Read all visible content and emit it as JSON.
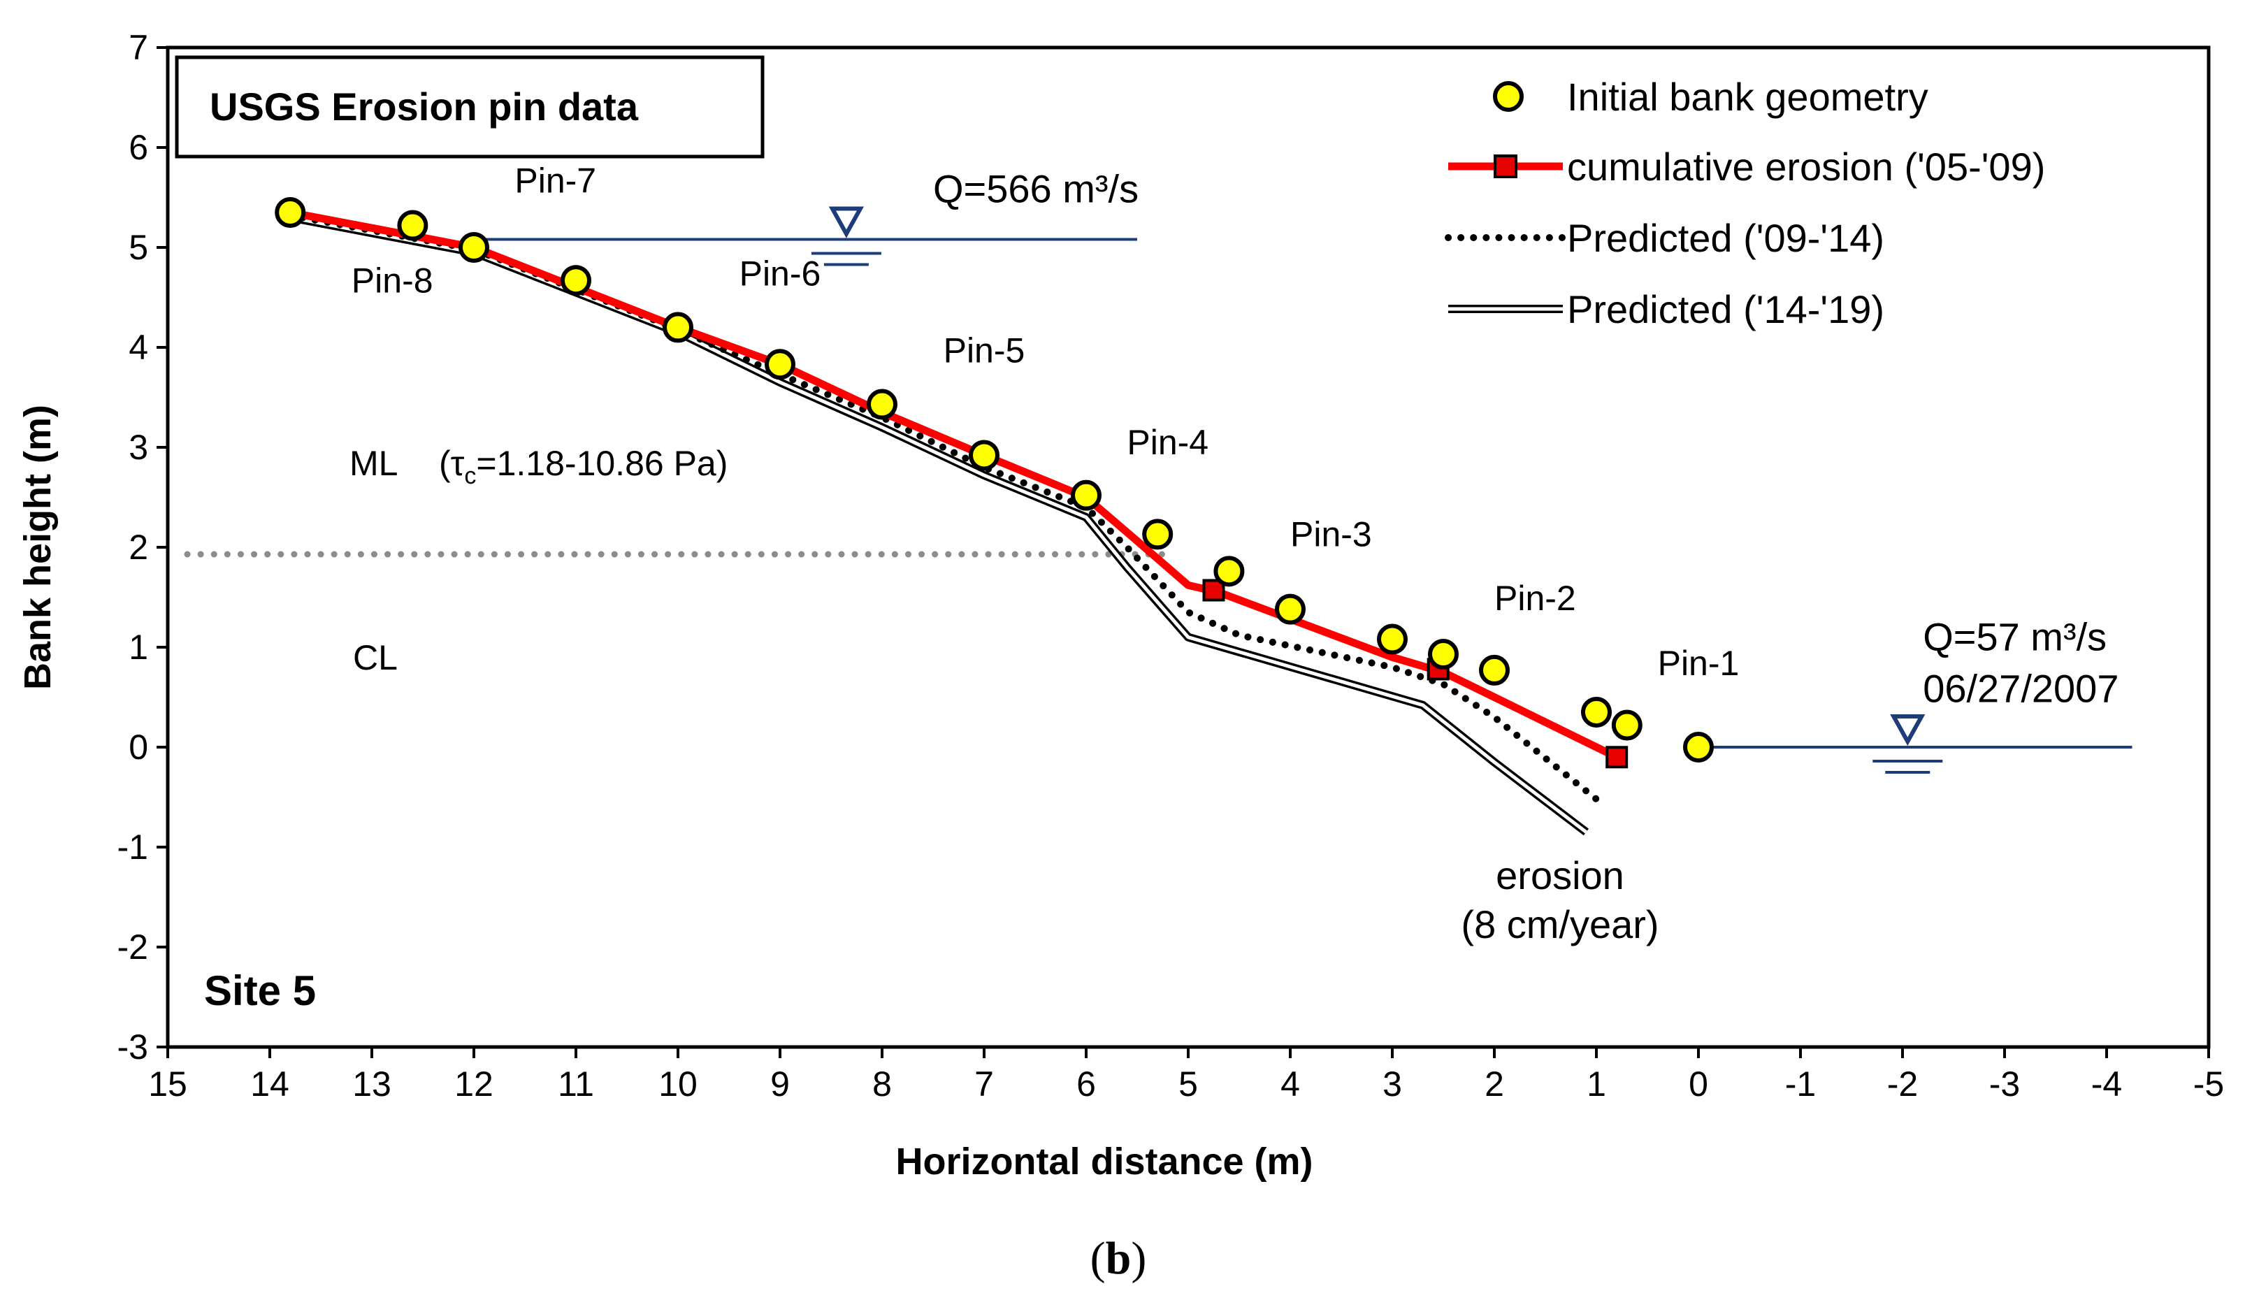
{
  "chart_data": {
    "type": "line",
    "title": "USGS Erosion pin data",
    "xlabel": "Horizontal distance (m)",
    "ylabel": "Bank height (m)",
    "xlim": [
      15,
      -5
    ],
    "ylim": [
      -3,
      7
    ],
    "x_ticks": [
      "15",
      "14",
      "13",
      "12",
      "11",
      "10",
      "9",
      "8",
      "7",
      "6",
      "5",
      "4",
      "3",
      "2",
      "1",
      "0",
      "-1",
      "-2",
      "-3",
      "-4",
      "-5"
    ],
    "y_ticks": [
      "7",
      "6",
      "5",
      "4",
      "3",
      "2",
      "1",
      "0",
      "-1",
      "-2",
      "-3"
    ],
    "series": [
      {
        "name": "Initial bank geometry",
        "color": "#ffff00",
        "points": [
          [
            13.8,
            5.35
          ],
          [
            12.6,
            5.22
          ],
          [
            12.0,
            5.0
          ],
          [
            11.0,
            4.67
          ],
          [
            10.0,
            4.2
          ],
          [
            9.0,
            3.83
          ],
          [
            8.0,
            3.43
          ],
          [
            7.0,
            2.92
          ],
          [
            6.0,
            2.52
          ],
          [
            5.3,
            2.13
          ],
          [
            4.6,
            1.76
          ],
          [
            4.0,
            1.38
          ],
          [
            3.0,
            1.08
          ],
          [
            2.5,
            0.93
          ],
          [
            2.0,
            0.77
          ],
          [
            1.0,
            0.35
          ],
          [
            0.7,
            0.22
          ],
          [
            0.0,
            0.0
          ]
        ]
      },
      {
        "name": "cumulative erosion ('05-'09)",
        "color": "#ff0000",
        "line_points": [
          [
            13.8,
            5.35
          ],
          [
            12.0,
            5.0
          ],
          [
            10.0,
            4.2
          ],
          [
            9.0,
            3.83
          ],
          [
            8.0,
            3.35
          ],
          [
            7.0,
            2.92
          ],
          [
            6.0,
            2.5
          ],
          [
            5.6,
            2.15
          ],
          [
            5.0,
            1.62
          ],
          [
            4.7,
            1.55
          ],
          [
            3.0,
            0.9
          ],
          [
            2.5,
            0.75
          ],
          [
            2.0,
            0.5
          ],
          [
            1.0,
            0.0
          ],
          [
            0.8,
            -0.1
          ]
        ],
        "markers": [
          [
            4.75,
            1.57
          ],
          [
            2.55,
            0.78
          ],
          [
            0.8,
            -0.1
          ]
        ]
      },
      {
        "name": "Predicted ('09-'14)",
        "color": "#000000",
        "points": [
          [
            13.8,
            5.32
          ],
          [
            12.0,
            4.98
          ],
          [
            10.0,
            4.18
          ],
          [
            9.0,
            3.73
          ],
          [
            8.0,
            3.3
          ],
          [
            7.0,
            2.8
          ],
          [
            6.0,
            2.4
          ],
          [
            5.6,
            2.0
          ],
          [
            5.0,
            1.35
          ],
          [
            4.5,
            1.12
          ],
          [
            3.0,
            0.8
          ],
          [
            2.5,
            0.63
          ],
          [
            2.0,
            0.3
          ],
          [
            1.0,
            -0.52
          ]
        ]
      },
      {
        "name": "Predicted ('14-'19)",
        "color": "#000000",
        "points": [
          [
            13.8,
            5.3
          ],
          [
            12.0,
            4.95
          ],
          [
            10.0,
            4.15
          ],
          [
            9.0,
            3.65
          ],
          [
            8.0,
            3.2
          ],
          [
            7.0,
            2.72
          ],
          [
            6.0,
            2.3
          ],
          [
            5.6,
            1.8
          ],
          [
            5.0,
            1.1
          ],
          [
            2.7,
            0.42
          ],
          [
            2.0,
            -0.15
          ],
          [
            1.1,
            -0.85
          ]
        ]
      }
    ],
    "pin_labels": [
      {
        "text": "Pin-8",
        "x": 13.2,
        "y": 4.55
      },
      {
        "text": "Pin-7",
        "x": 11.6,
        "y": 5.55
      },
      {
        "text": "Pin-6",
        "x": 9.4,
        "y": 4.62
      },
      {
        "text": "Pin-5",
        "x": 7.4,
        "y": 3.85
      },
      {
        "text": "Pin-4",
        "x": 5.6,
        "y": 2.93
      },
      {
        "text": "Pin-3",
        "x": 4.0,
        "y": 2.01
      },
      {
        "text": "Pin-2",
        "x": 2.0,
        "y": 1.37
      },
      {
        "text": "Pin-1",
        "x": 0.4,
        "y": 0.72
      }
    ],
    "water_levels": [
      {
        "label": "Q=566 m³/s",
        "x_from": 12.0,
        "x_to": 5.5,
        "y": 5.08,
        "marker_x": 8.35,
        "label_x": 7.5,
        "label_y": 5.45
      },
      {
        "label": "Q=57 m³/s",
        "date": "06/27/2007",
        "x_from": 0.0,
        "x_to": -4.25,
        "y": 0.0,
        "marker_x": -2.05,
        "label_x": -2.2,
        "label_y": 0.97
      }
    ],
    "soil_boundary": {
      "y": 1.93,
      "x_from": 15,
      "x_to": 5.25
    },
    "soil_labels": {
      "ml": "ML",
      "tau_prefix": "(τ",
      "tau_sub": "c",
      "tau_suffix": "=1.18-10.86 Pa)",
      "cl": "CL"
    },
    "annotations": {
      "site": "Site 5",
      "erosion": "erosion",
      "erosion_rate": "(8 cm/year)"
    },
    "legend_placement": "top-right"
  },
  "caption": {
    "open": "(",
    "letter": "b",
    "close": ")"
  }
}
